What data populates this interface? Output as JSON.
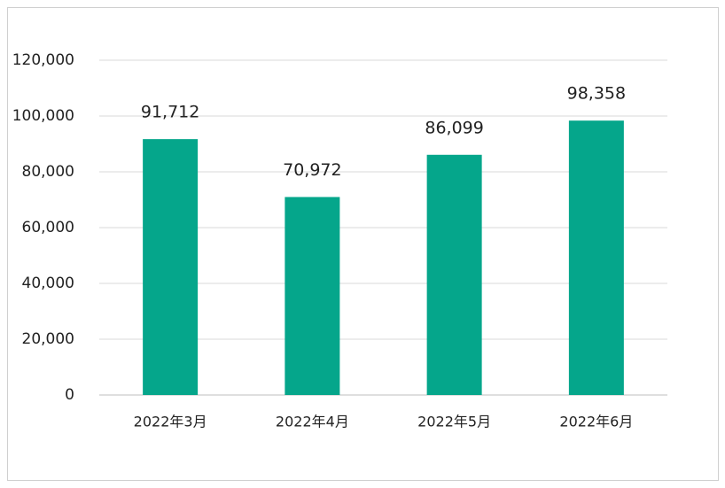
{
  "chart_data": {
    "type": "bar",
    "categories": [
      "2022年3月",
      "2022年4月",
      "2022年5月",
      "2022年6月"
    ],
    "values": [
      91712,
      70972,
      86099,
      98358
    ],
    "value_labels": [
      "91,712",
      "70,972",
      "86,099",
      "98,358"
    ],
    "color": "#05a68b",
    "ylim": [
      0,
      120000
    ],
    "yticks": [
      0,
      {
        "value": 20000,
        "label": "20,000"
      },
      {
        "value": 40000,
        "label": "40,000"
      },
      {
        "value": 60000,
        "label": "60,000"
      },
      {
        "value": 80000,
        "label": "80,000"
      },
      {
        "value": 100000,
        "label": "100,000"
      },
      {
        "value": 120000,
        "label": "120,000"
      }
    ],
    "grid": true
  }
}
